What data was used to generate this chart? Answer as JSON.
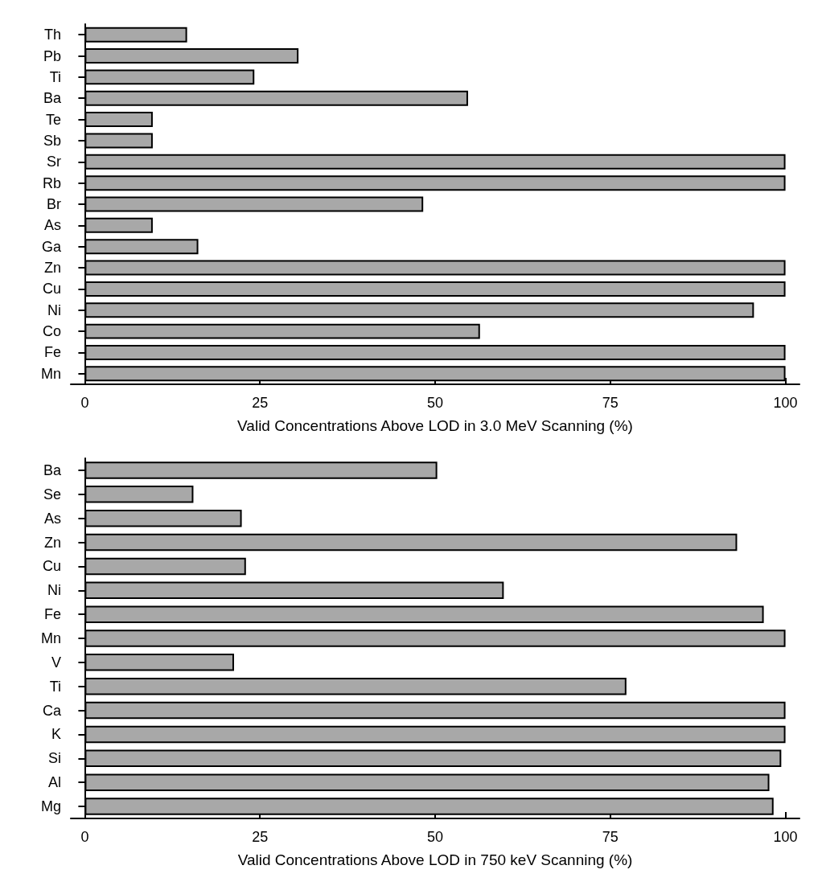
{
  "chart_data": [
    {
      "type": "bar",
      "orientation": "horizontal",
      "xlabel": "Valid Concentrations Above LOD in 3.0 MeV Scanning (%)",
      "categories": [
        "Th",
        "Pb",
        "Ti",
        "Ba",
        "Te",
        "Sb",
        "Sr",
        "Rb",
        "Br",
        "As",
        "Ga",
        "Zn",
        "Cu",
        "Ni",
        "Co",
        "Fe",
        "Mn"
      ],
      "values": [
        14.6,
        30.5,
        24.2,
        54.7,
        9.7,
        9.7,
        100,
        100,
        48.3,
        9.7,
        16.2,
        100,
        100,
        95.5,
        56.4,
        100,
        100
      ],
      "color": "#a8a8a8",
      "xlim": [
        -2,
        102
      ],
      "xticks": [
        0,
        25,
        50,
        75,
        100
      ],
      "grid": false
    },
    {
      "type": "bar",
      "orientation": "horizontal",
      "xlabel": "Valid Concentrations Above LOD in 750 keV Scanning (%)",
      "categories": [
        "Ba",
        "Se",
        "As",
        "Zn",
        "Cu",
        "Ni",
        "Fe",
        "Mn",
        "V",
        "Ti",
        "Ca",
        "K",
        "Si",
        "Al",
        "Mg"
      ],
      "values": [
        50.3,
        15.5,
        22.4,
        93.1,
        23.0,
        59.8,
        96.9,
        100,
        21.3,
        77.3,
        100,
        100,
        99.4,
        97.7,
        98.3
      ],
      "color": "#a8a8a8",
      "xlim": [
        -2,
        102
      ],
      "xticks": [
        0,
        25,
        50,
        75,
        100
      ],
      "grid": false
    }
  ]
}
